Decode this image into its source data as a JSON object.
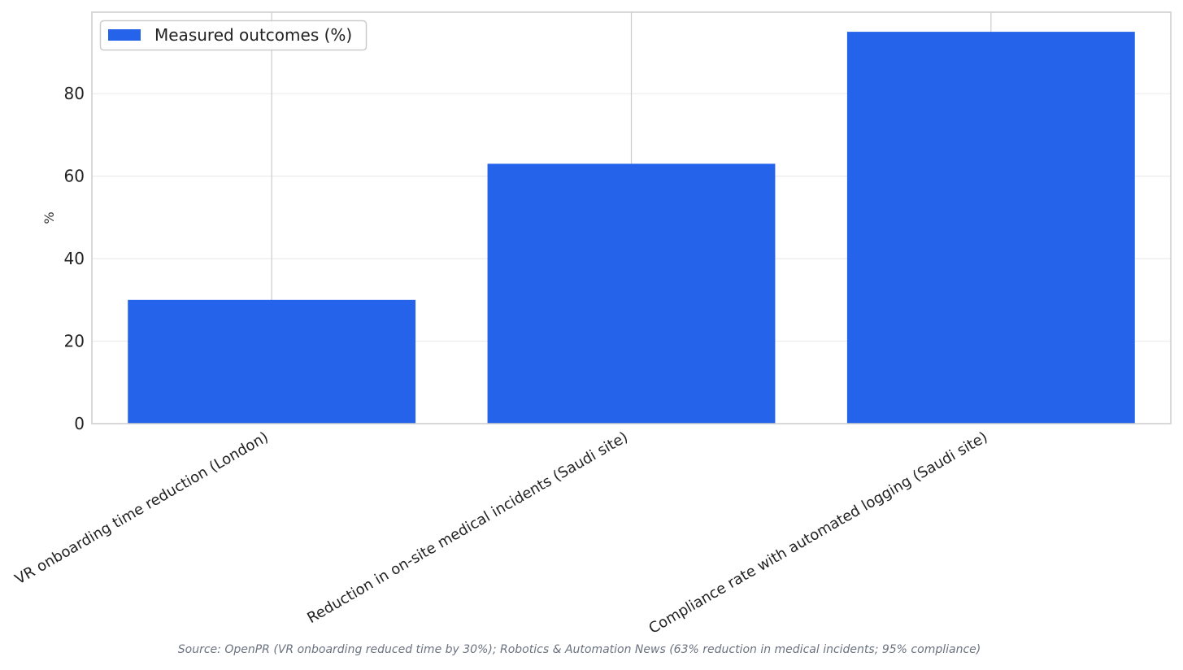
{
  "chart_data": {
    "type": "bar",
    "categories": [
      "VR onboarding time reduction (London)",
      "Reduction in on-site medical incidents (Saudi site)",
      "Compliance rate with automated logging (Saudi site)"
    ],
    "series": [
      {
        "name": "Measured outcomes (%)",
        "values": [
          30,
          63,
          95
        ],
        "color": "#2563eb"
      }
    ],
    "title": "",
    "xlabel": "",
    "ylabel": "%",
    "ylim": [
      0,
      99.75
    ],
    "yticks": [
      0,
      20,
      40,
      60,
      80
    ],
    "grid": true,
    "legend_position": "top-left"
  },
  "source_note": "Source: OpenPR (VR onboarding reduced time by 30%); Robotics & Automation News (63% reduction in medical incidents; 95% compliance)"
}
